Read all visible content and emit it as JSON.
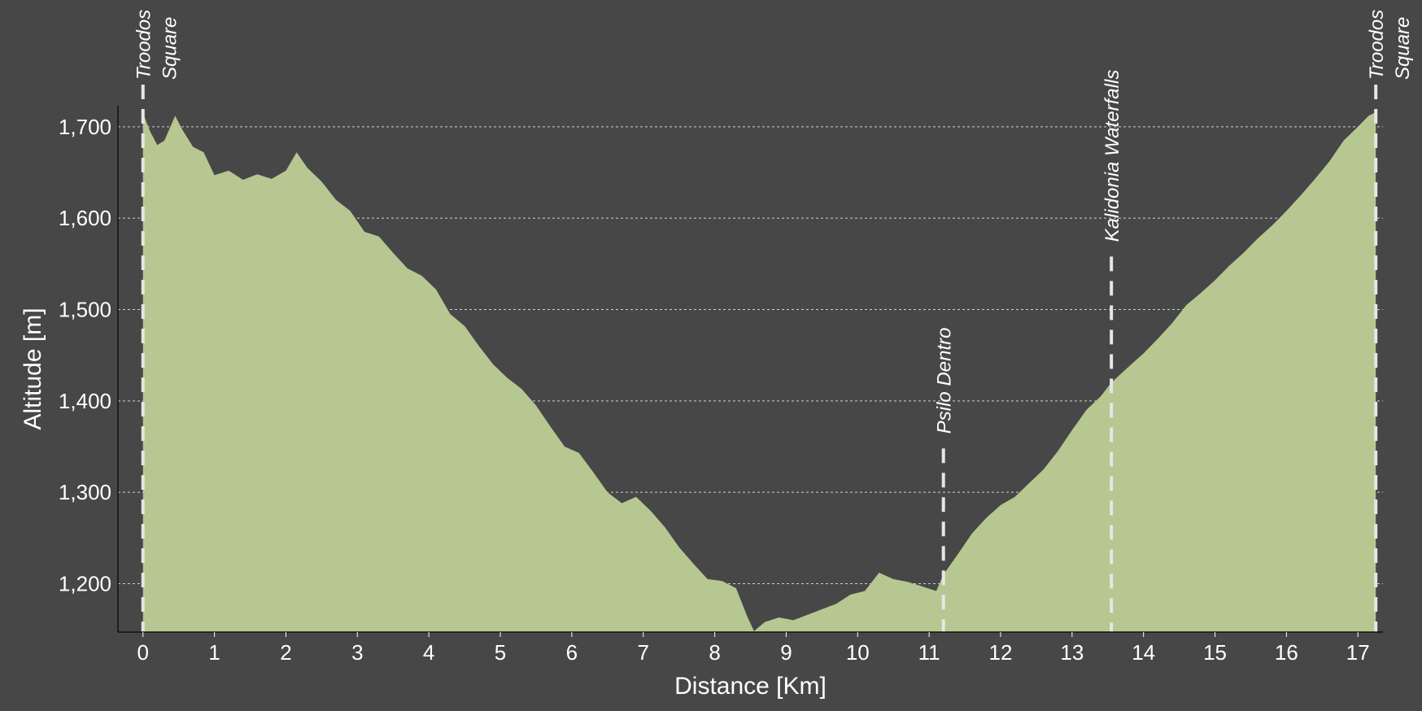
{
  "chart_data": {
    "type": "area",
    "xlabel": "Distance [Km]",
    "ylabel": "Altitude [m]",
    "xlim": [
      -0.35,
      17.35
    ],
    "ylim": [
      1147,
      1723
    ],
    "x_ticks": [
      0,
      1,
      2,
      3,
      4,
      5,
      6,
      7,
      8,
      9,
      10,
      11,
      12,
      13,
      14,
      15,
      16,
      17
    ],
    "y_ticks": [
      1200,
      1300,
      1400,
      1500,
      1600,
      1700
    ],
    "y_tick_labels": [
      "1,200",
      "1,300",
      "1,400",
      "1,500",
      "1,600",
      "1,700"
    ],
    "grid": "horizontal dashed",
    "colors": {
      "background": "#474747",
      "fill": "#b7c791",
      "text": "#ffffff",
      "waypoint_line": "#e6e6e6"
    },
    "waypoints": [
      {
        "name": "Troodos\nSquare",
        "x": 0
      },
      {
        "name": "Psilo Dentro",
        "x": 11.2
      },
      {
        "name": "Kalidonia Waterfalls",
        "x": 13.55
      },
      {
        "name": "Troodos\nSquare",
        "x": 17.25
      }
    ],
    "series": [
      {
        "x": [
          0,
          0.1,
          0.2,
          0.3,
          0.45,
          0.55,
          0.7,
          0.85,
          1.0,
          1.2,
          1.4,
          1.6,
          1.8,
          2.0,
          2.15,
          2.3,
          2.5,
          2.7,
          2.9,
          3.1,
          3.3,
          3.5,
          3.7,
          3.9,
          4.1,
          4.3,
          4.5,
          4.7,
          4.9,
          5.1,
          5.3,
          5.5,
          5.7,
          5.9,
          6.1,
          6.3,
          6.5,
          6.7,
          6.9,
          7.1,
          7.3,
          7.5,
          7.7,
          7.9,
          8.1,
          8.3,
          8.45,
          8.55,
          8.7,
          8.9,
          9.1,
          9.3,
          9.5,
          9.7,
          9.9,
          10.1,
          10.3,
          10.5,
          10.7,
          10.9,
          11.1,
          11.2,
          11.4,
          11.6,
          11.8,
          12.0,
          12.2,
          12.4,
          12.6,
          12.8,
          13.0,
          13.2,
          13.4,
          13.55,
          13.8,
          14.0,
          14.2,
          14.4,
          14.6,
          14.8,
          15.0,
          15.2,
          15.4,
          15.6,
          15.8,
          16.0,
          16.2,
          16.4,
          16.6,
          16.8,
          17.0,
          17.15,
          17.25
        ],
        "y": [
          1715,
          1695,
          1680,
          1685,
          1712,
          1697,
          1678,
          1672,
          1647,
          1652,
          1642,
          1648,
          1643,
          1652,
          1672,
          1655,
          1640,
          1620,
          1608,
          1585,
          1580,
          1562,
          1545,
          1537,
          1522,
          1495,
          1482,
          1460,
          1440,
          1425,
          1413,
          1395,
          1372,
          1350,
          1343,
          1322,
          1300,
          1288,
          1295,
          1280,
          1262,
          1240,
          1222,
          1205,
          1203,
          1195,
          1165,
          1148,
          1158,
          1163,
          1160,
          1166,
          1172,
          1178,
          1188,
          1192,
          1212,
          1205,
          1202,
          1197,
          1192,
          1210,
          1232,
          1255,
          1272,
          1286,
          1295,
          1310,
          1325,
          1345,
          1368,
          1390,
          1405,
          1420,
          1438,
          1452,
          1468,
          1485,
          1505,
          1518,
          1532,
          1548,
          1562,
          1578,
          1592,
          1608,
          1625,
          1643,
          1662,
          1685,
          1700,
          1712,
          1716
        ]
      }
    ]
  }
}
